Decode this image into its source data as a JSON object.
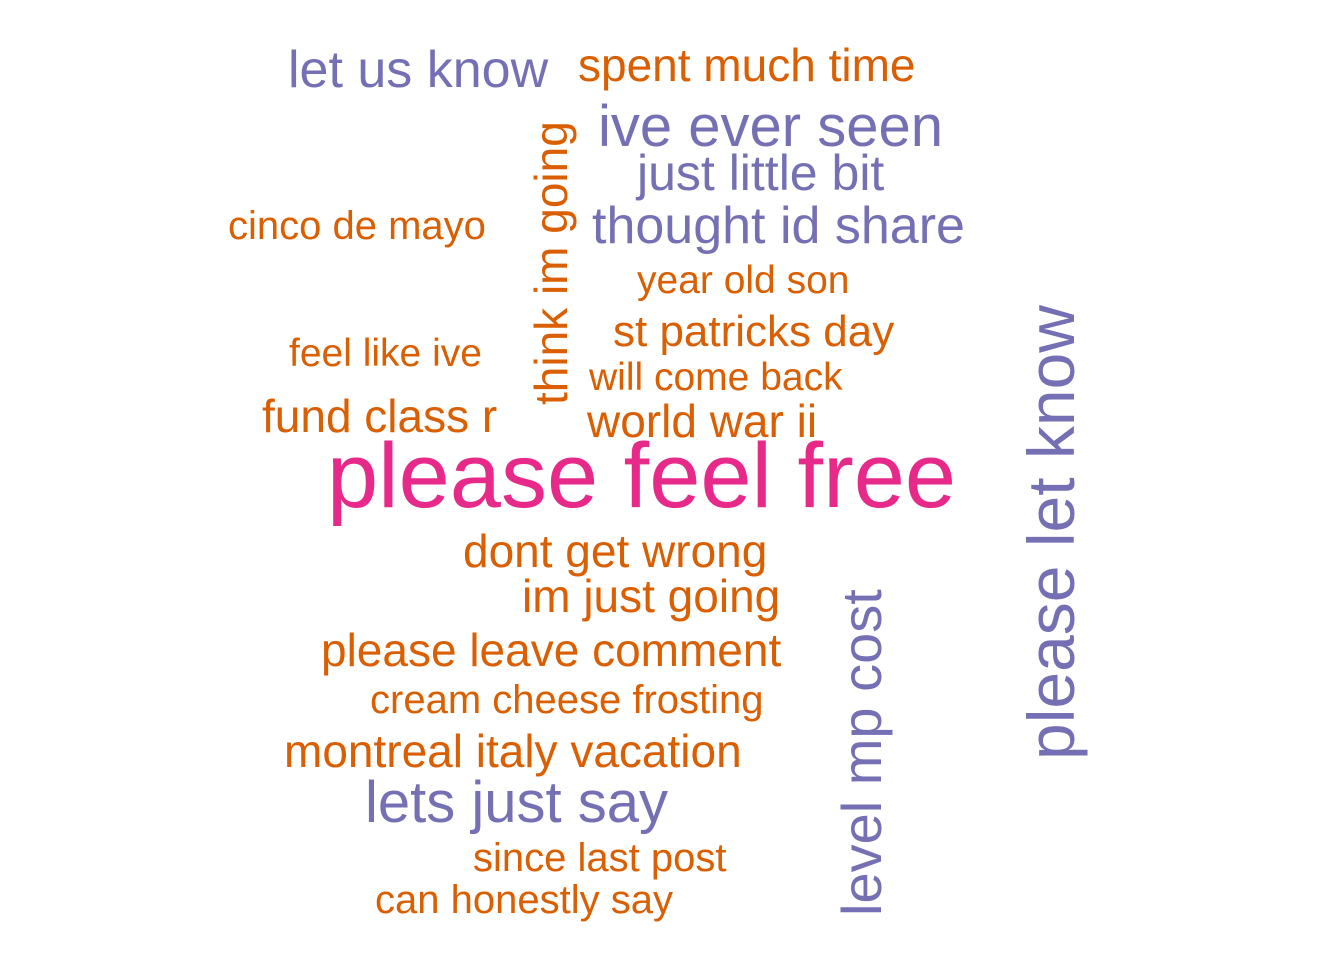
{
  "palette": {
    "purple": "#7570b3",
    "orange": "#d95f02",
    "pink": "#e7298a"
  },
  "words": [
    {
      "text": "please feel free",
      "color": "pink"
    },
    {
      "text": "please let know",
      "color": "purple"
    },
    {
      "text": "level mp cost",
      "color": "purple"
    },
    {
      "text": "think im going",
      "color": "orange"
    },
    {
      "text": "let us know",
      "color": "purple"
    },
    {
      "text": "spent much time",
      "color": "orange"
    },
    {
      "text": "ive ever seen",
      "color": "purple"
    },
    {
      "text": "just little bit",
      "color": "purple"
    },
    {
      "text": "thought id share",
      "color": "purple"
    },
    {
      "text": "cinco de mayo",
      "color": "orange"
    },
    {
      "text": "year old son",
      "color": "orange"
    },
    {
      "text": "st patricks day",
      "color": "orange"
    },
    {
      "text": "feel like ive",
      "color": "orange"
    },
    {
      "text": "will come back",
      "color": "orange"
    },
    {
      "text": "fund class r",
      "color": "orange"
    },
    {
      "text": "world war ii",
      "color": "orange"
    },
    {
      "text": "dont get wrong",
      "color": "orange"
    },
    {
      "text": "im just going",
      "color": "orange"
    },
    {
      "text": "please leave comment",
      "color": "orange"
    },
    {
      "text": "cream cheese frosting",
      "color": "orange"
    },
    {
      "text": "montreal italy vacation",
      "color": "orange"
    },
    {
      "text": "lets just say",
      "color": "purple"
    },
    {
      "text": "since last post",
      "color": "orange"
    },
    {
      "text": "can honestly say",
      "color": "orange"
    }
  ]
}
